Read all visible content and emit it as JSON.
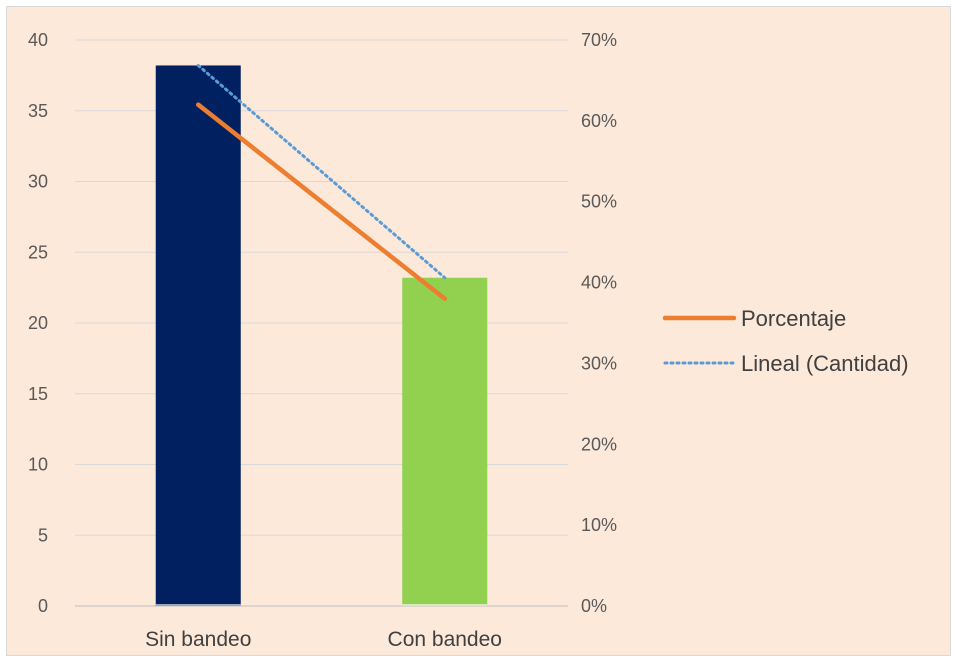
{
  "chart_data": {
    "type": "bar",
    "categories": [
      "Sin bandeo",
      "Con bandeo"
    ],
    "series": [
      {
        "kind": "bar",
        "axis": "left",
        "values": [
          38.2,
          23.2
        ],
        "colors": [
          "#002060",
          "#92d050"
        ]
      },
      {
        "name": "Porcentaje",
        "kind": "line",
        "axis": "right",
        "values": [
          0.62,
          0.38
        ],
        "color": "#ed7d31"
      },
      {
        "name": "Lineal (Cantidad)",
        "kind": "trendline",
        "axis": "left",
        "values": [
          38.2,
          23.2
        ],
        "color": "#5b9bd5",
        "style": "dotted"
      }
    ],
    "y_left": {
      "ylim": [
        0,
        40
      ],
      "ticks": [
        "0",
        "5",
        "10",
        "15",
        "20",
        "25",
        "30",
        "35",
        "40"
      ]
    },
    "y_right": {
      "ylim": [
        0,
        0.7
      ],
      "ticks": [
        "0%",
        "10%",
        "20%",
        "30%",
        "40%",
        "50%",
        "60%",
        "70%"
      ]
    },
    "grid": true,
    "legend_position": "right",
    "legend": [
      {
        "label": "Porcentaje",
        "style": "solid",
        "color": "#ed7d31"
      },
      {
        "label": "Lineal (Cantidad)",
        "style": "dotted",
        "color": "#5b9bd5"
      }
    ],
    "background": "#fce9da"
  }
}
